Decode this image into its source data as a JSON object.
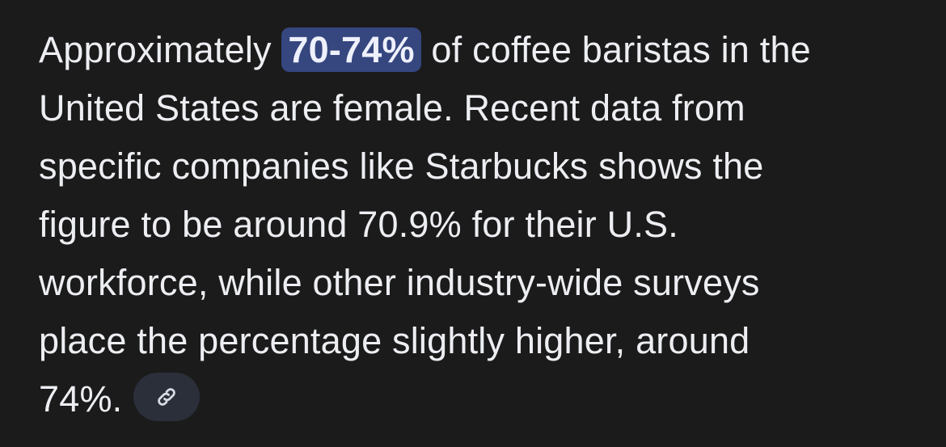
{
  "answer": {
    "line1_before": "Approximately ",
    "highlight": "70-74%",
    "line1_after": " of coffee baristas in the",
    "lines": [
      "United States are female. Recent data from",
      "specific companies like Starbucks shows the",
      "figure to be around 70.9% for their U.S.",
      "workforce, while other industry-wide surveys",
      "place the percentage slightly higher, around"
    ],
    "last_line": "74%.",
    "source_chip_icon": "link-icon"
  },
  "colors": {
    "background": "#1b1b1b",
    "text": "#eceef2",
    "highlight": "#36467f",
    "chip": "#2b2f3a"
  }
}
